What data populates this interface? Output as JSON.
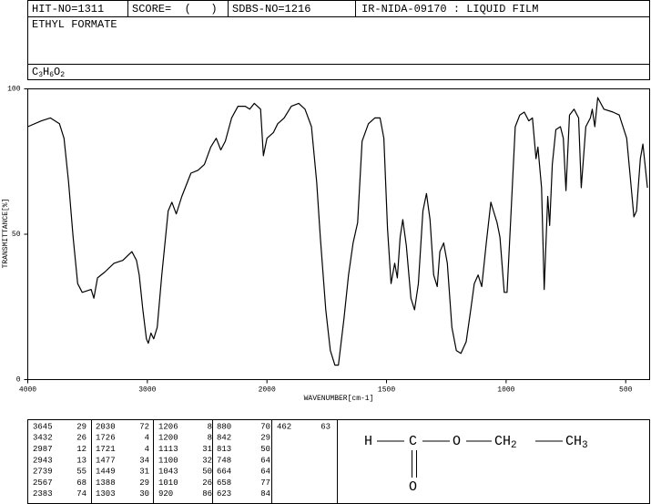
{
  "header": {
    "hit_no": "HIT-NO=1311",
    "score": "SCORE=  (   )",
    "sdbs_no": "SDBS-NO=1216",
    "method": "IR-NIDA-09170 : LIQUID FILM",
    "compound": "ETHYL FORMATE",
    "formula": [
      "C",
      "3",
      "H",
      "6",
      "O",
      "2"
    ]
  },
  "chart_data": {
    "type": "line",
    "xlabel": "WAVENUMBER[cm-1]",
    "ylabel": "TRANSMITTANCE[%]",
    "color": "#000000",
    "xlim": [
      4000,
      400
    ],
    "xbreak": 2000,
    "ylim": [
      0,
      100
    ],
    "xticks": [
      4000,
      3000,
      2000,
      1500,
      1000,
      500
    ],
    "yticks": [
      0,
      50,
      100
    ],
    "x": [
      4000,
      3886,
      3811,
      3735,
      3697,
      3659,
      3621,
      3583,
      3545,
      3470,
      3447,
      3417,
      3356,
      3280,
      3205,
      3129,
      3091,
      3068,
      3038,
      3008,
      2992,
      2970,
      2947,
      2917,
      2879,
      2826,
      2795,
      2758,
      2712,
      2636,
      2576,
      2523,
      2470,
      2424,
      2386,
      2348,
      2295,
      2242,
      2182,
      2144,
      2106,
      2053,
      2030,
      2000,
      1973,
      1955,
      1928,
      1898,
      1867,
      1841,
      1814,
      1792,
      1777,
      1754,
      1735,
      1716,
      1701,
      1678,
      1659,
      1640,
      1621,
      1602,
      1576,
      1549,
      1527,
      1511,
      1496,
      1481,
      1466,
      1455,
      1443,
      1432,
      1417,
      1398,
      1383,
      1367,
      1348,
      1333,
      1318,
      1303,
      1288,
      1277,
      1261,
      1246,
      1227,
      1208,
      1189,
      1167,
      1148,
      1133,
      1117,
      1102,
      1083,
      1064,
      1053,
      1038,
      1026,
      1008,
      996,
      981,
      962,
      943,
      924,
      905,
      890,
      875,
      867,
      852,
      841,
      826,
      818,
      807,
      792,
      773,
      761,
      750,
      735,
      716,
      697,
      686,
      667,
      648,
      640,
      629,
      617,
      591,
      553,
      527,
      496,
      477,
      466,
      455,
      439,
      428,
      409
    ],
    "values": [
      87,
      89,
      90,
      88,
      83,
      68,
      49,
      33,
      30,
      31,
      28,
      35,
      37,
      40,
      41,
      44,
      41,
      36,
      24,
      14,
      12.5,
      16,
      14,
      18,
      36,
      58,
      61,
      57,
      63,
      71,
      72,
      74,
      80,
      83,
      79,
      82,
      90,
      94,
      94,
      93,
      95,
      93,
      77,
      83,
      85,
      88,
      90,
      94,
      95,
      93,
      87,
      68,
      49,
      24,
      10,
      5,
      5,
      21,
      36,
      47,
      54,
      82,
      88,
      90,
      90,
      83,
      52,
      33,
      40,
      35,
      49,
      55,
      46,
      28,
      24,
      33,
      58,
      64,
      55,
      36,
      32,
      44,
      47,
      40,
      18,
      10,
      9,
      13,
      24,
      33,
      36,
      32,
      47,
      61,
      58,
      54,
      49,
      30,
      30,
      55,
      87,
      91,
      92,
      89,
      90,
      76,
      80,
      66,
      31,
      63,
      53,
      74,
      86,
      87,
      83,
      65,
      91,
      93,
      90,
      66,
      87,
      90,
      93,
      87,
      97,
      93,
      92,
      91,
      83,
      66,
      56,
      58,
      76,
      81,
      66
    ]
  },
  "peaks": [
    [
      [
        "3645",
        "29"
      ],
      [
        "3432",
        "26"
      ],
      [
        "2987",
        "12"
      ],
      [
        "2943",
        "13"
      ],
      [
        "2739",
        "55"
      ],
      [
        "2567",
        "68"
      ],
      [
        "2383",
        "74"
      ]
    ],
    [
      [
        "2030",
        "72"
      ],
      [
        "1726",
        "4"
      ],
      [
        "1721",
        "4"
      ],
      [
        "1477",
        "34"
      ],
      [
        "1449",
        "31"
      ],
      [
        "1388",
        "29"
      ],
      [
        "1303",
        "30"
      ]
    ],
    [
      [
        "1206",
        "8"
      ],
      [
        "1200",
        "8"
      ],
      [
        "1113",
        "31"
      ],
      [
        "1100",
        "32"
      ],
      [
        "1043",
        "50"
      ],
      [
        "1010",
        "26"
      ],
      [
        "920",
        "86"
      ]
    ],
    [
      [
        "880",
        "70"
      ],
      [
        "842",
        "29"
      ],
      [
        "813",
        "50"
      ],
      [
        "748",
        "64"
      ],
      [
        "664",
        "64"
      ],
      [
        "658",
        "77"
      ],
      [
        "623",
        "84"
      ]
    ],
    [
      [
        "462",
        "63"
      ]
    ]
  ],
  "structure": {
    "h": "H",
    "c": "C",
    "o": "O",
    "ch2": [
      "CH",
      "2"
    ],
    "ch3": [
      "CH",
      "3"
    ],
    "carbonyl_o": "O"
  }
}
